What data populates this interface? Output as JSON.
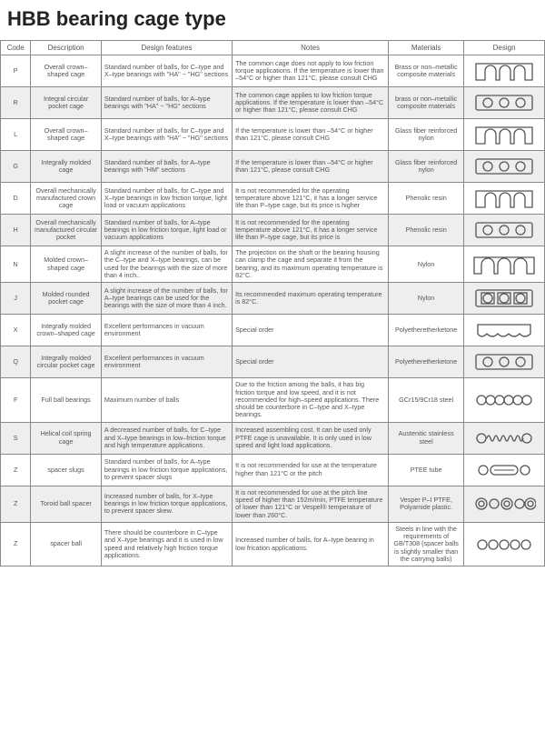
{
  "title": "HBB bearing cage type",
  "columns": [
    "Code",
    "Description",
    "Design features",
    "Notes",
    "Materials",
    "Design"
  ],
  "colors": {
    "stroke": "#555555",
    "fill_none": "none",
    "fill_gray": "#dddddd",
    "bg_alt": "#eeeeee",
    "bg": "#ffffff",
    "text": "#555555",
    "border": "#888888"
  },
  "rows": [
    {
      "alt": false,
      "code": "P",
      "desc": "Overall crown–shaped cage",
      "feat": "Standard number of balls, for C–type and X–type bearings with \"HA\" ~ \"HG\" sections",
      "notes": "The common cage does not apply to low friction torque applications. If the temperature is lower than –54°C or higher than 121°C, please consult CHG",
      "mat": "Brass or non–metallic composite materials",
      "design": "crown"
    },
    {
      "alt": true,
      "code": "R",
      "desc": "Integral circular pocket cage",
      "feat": "Standard number of balls, for A–type bearings with \"HA\" ~ \"HG\" sections",
      "notes": "The common cage applies to low friction torque applications. If the temperature is lower than –54°C or higher than 121°C, please consult CHG",
      "mat": "brass or non–metallic composite materials",
      "design": "circpocket"
    },
    {
      "alt": false,
      "code": "L",
      "desc": "Overall crown–shaped cage",
      "feat": "Standard number of balls, for C–type and X–type bearings with \"HA\" ~ \"HG\" sections",
      "notes": "If the temperature is lower than –54°C or higher than 121°C, please consult CHG",
      "mat": "Glass fiber reinforced nylon",
      "design": "crown"
    },
    {
      "alt": true,
      "code": "G",
      "desc": "Integrally molded cage",
      "feat": "Standard number of balls, for A–type bearings with \"HM\" sections",
      "notes": "If the temperature is lower than –54°C or higher than 121°C, please consult CHG",
      "mat": "Glass fiber reinforced nylon",
      "design": "circpocket"
    },
    {
      "alt": false,
      "code": "D",
      "desc": "Overall mechanically manufactured crown cage",
      "feat": "Standard number of balls, for C–type and X–type bearings in low friction torque, light load or vacuum applications",
      "notes": "It is not recommended for the operating temperature above 121°C, it has a longer service life than P–type cage, but its price is higher",
      "mat": "Phenolic resin",
      "design": "crown"
    },
    {
      "alt": true,
      "code": "H",
      "desc": "Overall mechanically manufactured circular pocket",
      "feat": "Standard number of balls, for A–type bearings in low friction torque, light load or vacuum applications",
      "notes": "It is not recommended for the operating temperature above 121°C, it has a longer service life than P–type cage, but its price is",
      "mat": "Phenolic resin",
      "design": "circpocket"
    },
    {
      "alt": false,
      "code": "N",
      "desc": "Molded crown–shaped cage",
      "feat": "A slight increase of the number of balls, for the C–type and X–type bearings, can be used for the bearings with the size of more than 4 inch..",
      "notes": "The projection on the shaft or the bearing housing can clamp the cage and separate it from the bearing, and its maximum operating temperature is 82°C.",
      "mat": "Nylon",
      "design": "crownwide"
    },
    {
      "alt": true,
      "code": "J",
      "desc": "Molded rounded pocket cage",
      "feat": "A slight increase of the number of balls, for A–type bearings can be used for the bearings with the size of more than 4 inch.",
      "notes": "Its recommended maximum operating temperature is 82°C.",
      "mat": "Nylon",
      "design": "sqpocket"
    },
    {
      "alt": false,
      "code": "X",
      "desc": "Integrally molded crown–shaped cage",
      "feat": "Excellent performances in vacuum environment",
      "notes": "Special order",
      "mat": "Polyetheretherketone",
      "design": "crownwave"
    },
    {
      "alt": true,
      "code": "Q",
      "desc": "Integrally molded circular pocket cage",
      "feat": "Excellent performances in vacuum environment",
      "notes": "Special order",
      "mat": "Polyetheretherketone",
      "design": "circpocket"
    },
    {
      "alt": false,
      "code": "F",
      "desc": "Full ball bearings",
      "feat": "Maximum number of balls",
      "notes": "Due to the friction among the balls, it has big friction torque and low speed, and it is not recommended for high–speed applications. There should be counterbore in C–type and X–type bearings.",
      "mat": "GCr15/9Cr18 steel",
      "design": "fullballs"
    },
    {
      "alt": true,
      "code": "S",
      "desc": "Helical coil spring cage",
      "feat": "A decreased number of balls, for C–type and X–type bearings in low–friction torque and high temperature applications.",
      "notes": "Increased assembling cost. It can be used only PTFE cage is unavailable. It is only used in low speed and light load applications.",
      "mat": "Austenitic stainless steel",
      "design": "spring"
    },
    {
      "alt": false,
      "code": "Z",
      "desc": "spacer slugs",
      "feat": "Standard number of balls, for A–type bearings in low friction torque applications, to prevent spacer slugs",
      "notes": "It is not recommended for use at the temperature higher than 121°C or the pitch",
      "mat": "PTEE tube",
      "design": "slugs"
    },
    {
      "alt": true,
      "code": "Z",
      "desc": "Toroid ball spacer",
      "feat": "Increased number of balls, for X–type bearings in low friction torque applications, to prevent spacer skew.",
      "notes": "It is not recommended for use at the pitch line speed of higher than 152m/min, PTFE temperature of lower than 121°C or Vespel® temperature of lower than 260°C.",
      "mat": "Vesper P–I PTFE, Polyamide plastic.",
      "design": "toroid"
    },
    {
      "alt": false,
      "code": "Z",
      "desc": "spacer ball",
      "feat": "There should be counterbore in C–type and X–type bearings and it is used in low speed and relatively high friction torque applications.",
      "notes": "Increased number of balls, for A–type bearing in low frication applications.",
      "mat": "Steels in line with the requirements of GB/T308 (spacer balls is slightly smaller than the carrying balls)",
      "design": "spacerballs"
    }
  ]
}
